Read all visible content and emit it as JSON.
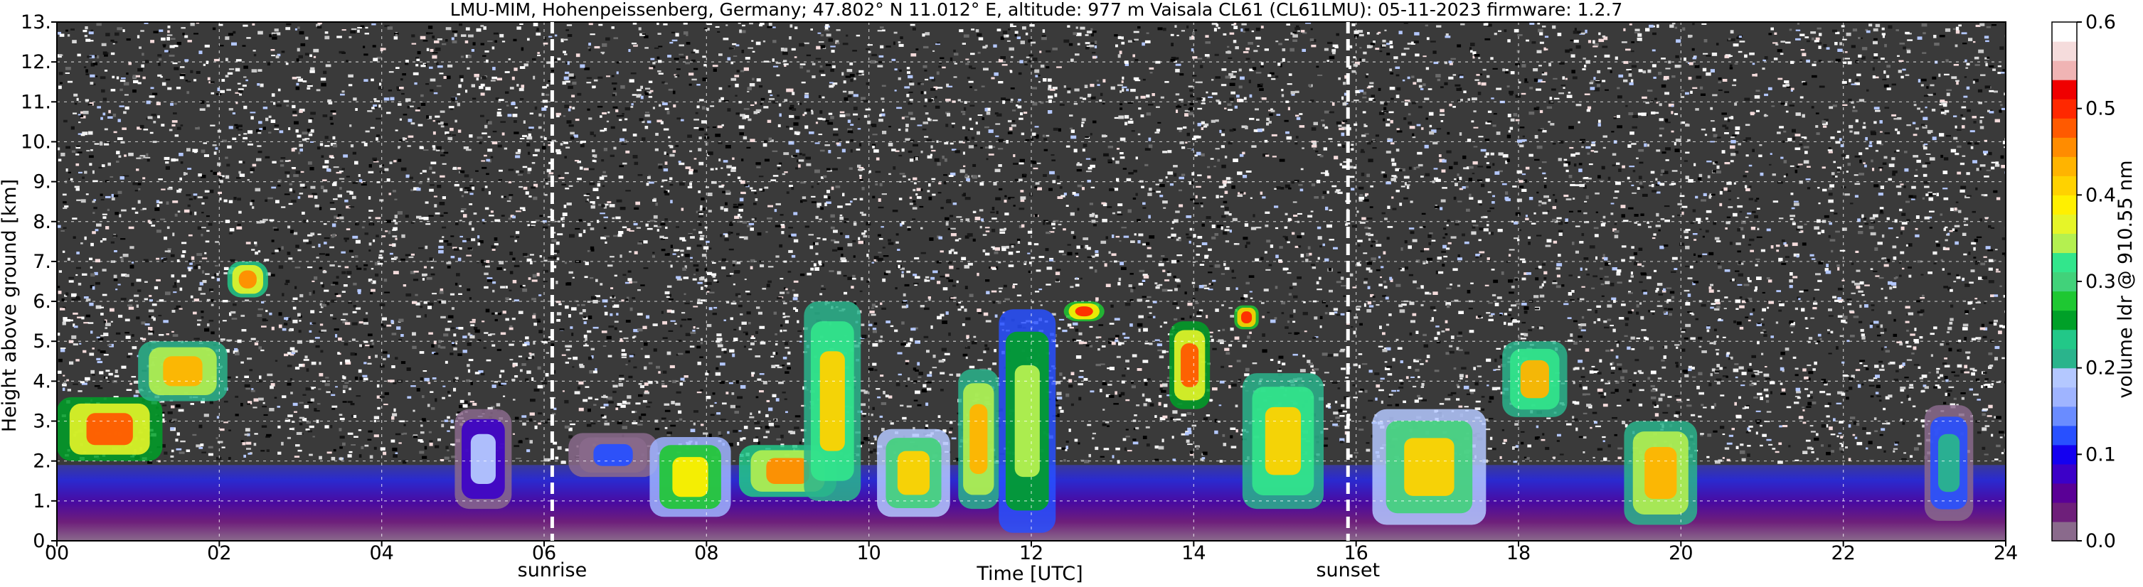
{
  "chart_data": {
    "type": "heatmap",
    "title": "LMU-MIM, Hohenpeissenberg, Germany; 47.802° N 11.012° E, altitude: 977 m    Vaisala CL61 (CL61LMU): 05-11-2023    firmware: 1.2.7",
    "xlabel": "Time [UTC]",
    "ylabel": "Height above ground [km]",
    "xlim": [
      0,
      24
    ],
    "ylim": [
      0,
      13
    ],
    "x_ticks": [
      {
        "value": 0,
        "label": "00"
      },
      {
        "value": 2,
        "label": "02"
      },
      {
        "value": 4,
        "label": "04"
      },
      {
        "value": 6,
        "label": "06"
      },
      {
        "value": 8,
        "label": "08"
      },
      {
        "value": 10,
        "label": "10"
      },
      {
        "value": 12,
        "label": "12"
      },
      {
        "value": 14,
        "label": "14"
      },
      {
        "value": 16,
        "label": "16"
      },
      {
        "value": 18,
        "label": "18"
      },
      {
        "value": 20,
        "label": "20"
      },
      {
        "value": 22,
        "label": "22"
      },
      {
        "value": 24,
        "label": "24"
      }
    ],
    "y_ticks": [
      {
        "value": 0,
        "label": "0."
      },
      {
        "value": 1,
        "label": "1."
      },
      {
        "value": 2,
        "label": "2."
      },
      {
        "value": 3,
        "label": "3."
      },
      {
        "value": 4,
        "label": "4."
      },
      {
        "value": 5,
        "label": "5."
      },
      {
        "value": 6,
        "label": "6."
      },
      {
        "value": 7,
        "label": "7."
      },
      {
        "value": 8,
        "label": "8."
      },
      {
        "value": 9,
        "label": "9."
      },
      {
        "value": 10,
        "label": "10."
      },
      {
        "value": 11,
        "label": "11."
      },
      {
        "value": 12,
        "label": "12."
      },
      {
        "value": 13,
        "label": "13."
      }
    ],
    "grid": true,
    "markers": [
      {
        "label": "sunrise",
        "x": 6.1
      },
      {
        "label": "sunset",
        "x": 15.9
      }
    ],
    "colorbar": {
      "label": "volume ldr @ 910.55 nm",
      "range": [
        0.0,
        0.6
      ],
      "ticks": [
        {
          "value": 0.0,
          "label": "0.0"
        },
        {
          "value": 0.1,
          "label": "0.1"
        },
        {
          "value": 0.2,
          "label": "0.2"
        },
        {
          "value": 0.3,
          "label": "0.3"
        },
        {
          "value": 0.4,
          "label": "0.4"
        },
        {
          "value": 0.5,
          "label": "0.5"
        },
        {
          "value": 0.6,
          "label": "0.6"
        }
      ],
      "colors": [
        "#8a6a8c",
        "#6e1f7a",
        "#5a0096",
        "#3c00c8",
        "#1400f0",
        "#2850ff",
        "#6a8cff",
        "#9fb4ff",
        "#b4c8ff",
        "#2ab48c",
        "#22c888",
        "#00a028",
        "#1ec832",
        "#41d27a",
        "#32e68c",
        "#b4f050",
        "#e6f528",
        "#fff000",
        "#ffd200",
        "#ffb400",
        "#ff8c00",
        "#ff5a00",
        "#ff2800",
        "#f00000",
        "#f0b4b4",
        "#f5dcdc",
        "#ffffff"
      ]
    },
    "features": [
      {
        "name": "ldr_background_noise",
        "x": [
          0,
          24
        ],
        "y": [
          2,
          13
        ]
      },
      {
        "name": "boundary_layer",
        "x": [
          0,
          24
        ],
        "y": [
          0,
          1.9
        ]
      },
      {
        "name": "cloud",
        "x": [
          0.0,
          1.3
        ],
        "y": [
          2.0,
          3.6
        ],
        "ldr": 0.47
      },
      {
        "name": "cloud",
        "x": [
          1.0,
          2.1
        ],
        "y": [
          3.5,
          5.0
        ],
        "ldr": 0.44
      },
      {
        "name": "cloud",
        "x": [
          2.1,
          2.6
        ],
        "y": [
          6.1,
          7.0
        ],
        "ldr": 0.46
      },
      {
        "name": "cloud",
        "x": [
          4.9,
          5.6
        ],
        "y": [
          0.8,
          3.3
        ],
        "ldr": 0.18
      },
      {
        "name": "cloud",
        "x": [
          6.3,
          7.4
        ],
        "y": [
          1.6,
          2.7
        ],
        "ldr": 0.12
      },
      {
        "name": "cloud",
        "x": [
          7.3,
          8.3
        ],
        "y": [
          0.6,
          2.6
        ],
        "ldr": 0.38
      },
      {
        "name": "cloud",
        "x": [
          8.4,
          9.6
        ],
        "y": [
          1.1,
          2.4
        ],
        "ldr": 0.45
      },
      {
        "name": "cloud",
        "x": [
          9.2,
          9.9
        ],
        "y": [
          1.0,
          6.0
        ],
        "ldr": 0.42
      },
      {
        "name": "cloud",
        "x": [
          10.1,
          11.0
        ],
        "y": [
          0.6,
          2.8
        ],
        "ldr": 0.4
      },
      {
        "name": "cloud",
        "x": [
          11.1,
          11.6
        ],
        "y": [
          0.8,
          4.3
        ],
        "ldr": 0.44
      },
      {
        "name": "cloud",
        "x": [
          11.6,
          12.3
        ],
        "y": [
          0.2,
          5.8
        ],
        "ldr": 0.35
      },
      {
        "name": "cloud",
        "x": [
          12.4,
          12.9
        ],
        "y": [
          5.5,
          6.0
        ],
        "ldr": 0.49
      },
      {
        "name": "cloud",
        "x": [
          13.7,
          14.2
        ],
        "y": [
          3.3,
          5.5
        ],
        "ldr": 0.47
      },
      {
        "name": "cloud",
        "x": [
          14.5,
          14.8
        ],
        "y": [
          5.3,
          5.9
        ],
        "ldr": 0.5
      },
      {
        "name": "cloud",
        "x": [
          14.6,
          15.6
        ],
        "y": [
          0.8,
          4.2
        ],
        "ldr": 0.42
      },
      {
        "name": "cloud",
        "x": [
          16.2,
          17.6
        ],
        "y": [
          0.4,
          3.3
        ],
        "ldr": 0.4
      },
      {
        "name": "cloud",
        "x": [
          17.8,
          18.6
        ],
        "y": [
          3.1,
          5.0
        ],
        "ldr": 0.43
      },
      {
        "name": "cloud",
        "x": [
          19.3,
          20.2
        ],
        "y": [
          0.4,
          3.0
        ],
        "ldr": 0.44
      },
      {
        "name": "cloud",
        "x": [
          23.0,
          23.6
        ],
        "y": [
          0.5,
          3.4
        ],
        "ldr": 0.22
      }
    ]
  }
}
